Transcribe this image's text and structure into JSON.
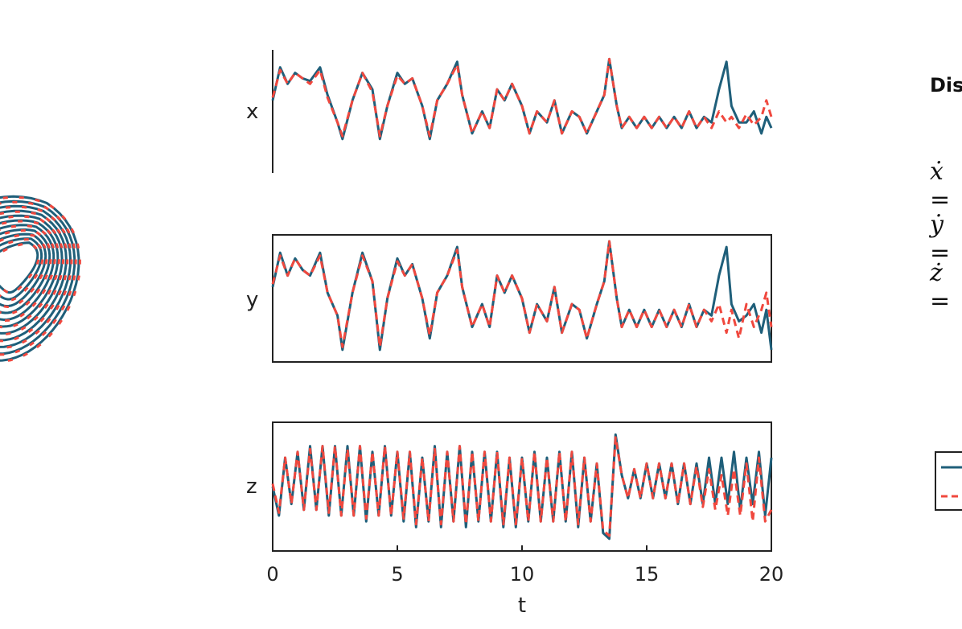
{
  "colors": {
    "solid": "#1f5f7a",
    "dashed": "#f0483e",
    "axis": "#222222"
  },
  "right_panel": {
    "title": "Dis",
    "eq_x": "ẋ =",
    "eq_y": "ẏ =",
    "eq_z": "ż ="
  },
  "chart_data": [
    {
      "type": "line",
      "subtype": "phase-portrait (clipped at left edge)",
      "series": [
        {
          "style": "solid"
        },
        {
          "style": "dashed"
        }
      ]
    },
    {
      "type": "line",
      "ylabel": "x",
      "xlim": [
        0,
        20
      ],
      "series": [
        {
          "style": "solid",
          "x": [
            0,
            0.3,
            0.6,
            0.9,
            1.2,
            1.5,
            1.9,
            2.2,
            2.6,
            2.8,
            3.2,
            3.6,
            4.0,
            4.3,
            4.6,
            5.0,
            5.3,
            5.6,
            6.0,
            6.3,
            6.6,
            7.0,
            7.4,
            7.6,
            8.0,
            8.4,
            8.7,
            9.0,
            9.3,
            9.6,
            10.0,
            10.3,
            10.6,
            11.0,
            11.3,
            11.6,
            12.0,
            12.3,
            12.6,
            13.0,
            13.3,
            13.5,
            13.8,
            14.0,
            14.3,
            14.6,
            14.9,
            15.2,
            15.5,
            15.8,
            16.1,
            16.4,
            16.7,
            17.0,
            17.3,
            17.6,
            17.9,
            18.2,
            18.4,
            18.7,
            19.0,
            19.3,
            19.6,
            19.8,
            20.0
          ],
          "values": [
            0.2,
            0.8,
            0.5,
            0.7,
            0.6,
            0.55,
            0.8,
            0.3,
            -0.2,
            -0.5,
            0.2,
            0.7,
            0.4,
            -0.5,
            0.1,
            0.7,
            0.5,
            0.6,
            0.1,
            -0.5,
            0.2,
            0.5,
            0.9,
            0.3,
            -0.4,
            0.0,
            -0.3,
            0.4,
            0.2,
            0.5,
            0.1,
            -0.4,
            0.0,
            -0.2,
            0.2,
            -0.4,
            0.0,
            -0.1,
            -0.4,
            0.0,
            0.3,
            0.95,
            0.1,
            -0.3,
            -0.1,
            -0.3,
            -0.1,
            -0.3,
            -0.1,
            -0.3,
            -0.1,
            -0.3,
            0.0,
            -0.3,
            -0.1,
            -0.2,
            0.4,
            0.9,
            0.1,
            -0.2,
            -0.2,
            0.0,
            -0.4,
            -0.1,
            -0.3
          ]
        },
        {
          "style": "dashed",
          "x": [
            0,
            0.3,
            0.6,
            0.9,
            1.2,
            1.5,
            1.9,
            2.2,
            2.6,
            2.8,
            3.2,
            3.6,
            4.0,
            4.3,
            4.6,
            5.0,
            5.3,
            5.6,
            6.0,
            6.3,
            6.6,
            7.0,
            7.4,
            7.6,
            8.0,
            8.4,
            8.7,
            9.0,
            9.3,
            9.6,
            10.0,
            10.3,
            10.6,
            11.0,
            11.3,
            11.6,
            12.0,
            12.3,
            12.6,
            13.0,
            13.3,
            13.5,
            13.8,
            14.0,
            14.3,
            14.6,
            14.9,
            15.2,
            15.5,
            15.8,
            16.1,
            16.4,
            16.7,
            17.0,
            17.3,
            17.6,
            17.9,
            18.2,
            18.4,
            18.7,
            19.0,
            19.3,
            19.6,
            19.8,
            20.0
          ],
          "values": [
            0.25,
            0.75,
            0.5,
            0.7,
            0.6,
            0.5,
            0.75,
            0.25,
            -0.2,
            -0.45,
            0.2,
            0.7,
            0.35,
            -0.45,
            0.1,
            0.65,
            0.5,
            0.6,
            0.1,
            -0.45,
            0.2,
            0.5,
            0.85,
            0.3,
            -0.4,
            0.0,
            -0.3,
            0.4,
            0.2,
            0.5,
            0.1,
            -0.4,
            0.0,
            -0.2,
            0.2,
            -0.4,
            0.0,
            -0.1,
            -0.4,
            0.0,
            0.3,
            0.95,
            0.1,
            -0.3,
            -0.1,
            -0.3,
            -0.1,
            -0.3,
            -0.1,
            -0.3,
            -0.1,
            -0.3,
            0.0,
            -0.3,
            -0.1,
            -0.3,
            0.0,
            -0.2,
            -0.1,
            -0.3,
            -0.05,
            -0.25,
            -0.1,
            0.2,
            -0.1
          ]
        }
      ]
    },
    {
      "type": "line",
      "ylabel": "y",
      "xlim": [
        0,
        20
      ],
      "series": [
        {
          "style": "solid",
          "x": [
            0,
            0.3,
            0.6,
            0.9,
            1.2,
            1.5,
            1.9,
            2.2,
            2.6,
            2.8,
            3.2,
            3.6,
            4.0,
            4.3,
            4.6,
            5.0,
            5.3,
            5.6,
            6.0,
            6.3,
            6.6,
            7.0,
            7.4,
            7.6,
            8.0,
            8.4,
            8.7,
            9.0,
            9.3,
            9.6,
            10.0,
            10.3,
            10.6,
            11.0,
            11.3,
            11.6,
            12.0,
            12.3,
            12.6,
            13.0,
            13.3,
            13.5,
            13.8,
            14.0,
            14.3,
            14.6,
            14.9,
            15.2,
            15.5,
            15.8,
            16.1,
            16.4,
            16.7,
            17.0,
            17.3,
            17.6,
            17.9,
            18.2,
            18.4,
            18.7,
            19.0,
            19.3,
            19.6,
            19.8,
            20.0
          ],
          "values": [
            0.2,
            0.8,
            0.4,
            0.7,
            0.5,
            0.4,
            0.8,
            0.1,
            -0.3,
            -0.9,
            0.1,
            0.8,
            0.3,
            -0.9,
            0.0,
            0.7,
            0.4,
            0.6,
            0.0,
            -0.7,
            0.1,
            0.4,
            0.9,
            0.2,
            -0.5,
            -0.1,
            -0.5,
            0.4,
            0.1,
            0.4,
            0.0,
            -0.6,
            -0.1,
            -0.4,
            0.2,
            -0.6,
            -0.1,
            -0.2,
            -0.7,
            -0.1,
            0.3,
            1.0,
            0.0,
            -0.5,
            -0.2,
            -0.5,
            -0.2,
            -0.5,
            -0.2,
            -0.5,
            -0.2,
            -0.5,
            -0.1,
            -0.5,
            -0.2,
            -0.3,
            0.4,
            0.9,
            -0.1,
            -0.4,
            -0.3,
            -0.1,
            -0.6,
            -0.2,
            -0.9
          ]
        },
        {
          "style": "dashed",
          "x": [
            0,
            0.3,
            0.6,
            0.9,
            1.2,
            1.5,
            1.9,
            2.2,
            2.6,
            2.8,
            3.2,
            3.6,
            4.0,
            4.3,
            4.6,
            5.0,
            5.3,
            5.6,
            6.0,
            6.3,
            6.6,
            7.0,
            7.4,
            7.6,
            8.0,
            8.4,
            8.7,
            9.0,
            9.3,
            9.6,
            10.0,
            10.3,
            10.6,
            11.0,
            11.3,
            11.6,
            12.0,
            12.3,
            12.6,
            13.0,
            13.3,
            13.5,
            13.8,
            14.0,
            14.3,
            14.6,
            14.9,
            15.2,
            15.5,
            15.8,
            16.1,
            16.4,
            16.7,
            17.0,
            17.3,
            17.6,
            17.9,
            18.2,
            18.4,
            18.7,
            19.0,
            19.3,
            19.6,
            19.8,
            20.0
          ],
          "values": [
            0.25,
            0.75,
            0.4,
            0.7,
            0.5,
            0.4,
            0.75,
            0.1,
            -0.3,
            -0.85,
            0.1,
            0.75,
            0.3,
            -0.85,
            0.0,
            0.65,
            0.4,
            0.6,
            0.0,
            -0.65,
            0.1,
            0.4,
            0.85,
            0.2,
            -0.5,
            -0.1,
            -0.5,
            0.4,
            0.1,
            0.4,
            0.0,
            -0.6,
            -0.1,
            -0.4,
            0.2,
            -0.6,
            -0.1,
            -0.2,
            -0.7,
            -0.1,
            0.3,
            1.0,
            0.0,
            -0.5,
            -0.2,
            -0.5,
            -0.2,
            -0.5,
            -0.2,
            -0.5,
            -0.2,
            -0.5,
            -0.1,
            -0.5,
            -0.2,
            -0.4,
            -0.1,
            -0.6,
            -0.2,
            -0.7,
            -0.1,
            -0.5,
            -0.2,
            0.1,
            -0.5
          ]
        }
      ]
    },
    {
      "type": "line",
      "ylabel": "z",
      "xlim": [
        0,
        20
      ],
      "xticks": [
        "0",
        "5",
        "10",
        "15",
        "20"
      ],
      "xlabel": "t",
      "series": [
        {
          "style": "solid",
          "x": [
            0,
            0.25,
            0.5,
            0.75,
            1.0,
            1.25,
            1.5,
            1.75,
            2.0,
            2.25,
            2.5,
            2.75,
            3.0,
            3.25,
            3.5,
            3.75,
            4.0,
            4.25,
            4.5,
            4.75,
            5.0,
            5.25,
            5.5,
            5.75,
            6.0,
            6.25,
            6.5,
            6.75,
            7.0,
            7.25,
            7.5,
            7.75,
            8.0,
            8.25,
            8.5,
            8.75,
            9.0,
            9.25,
            9.5,
            9.75,
            10.0,
            10.25,
            10.5,
            10.75,
            11.0,
            11.25,
            11.5,
            11.75,
            12.0,
            12.25,
            12.5,
            12.75,
            13.0,
            13.25,
            13.5,
            13.75,
            14.0,
            14.25,
            14.5,
            14.75,
            15.0,
            15.25,
            15.5,
            15.75,
            16.0,
            16.25,
            16.5,
            16.75,
            17.0,
            17.25,
            17.5,
            17.75,
            18.0,
            18.25,
            18.5,
            18.75,
            19.0,
            19.25,
            19.5,
            19.75,
            20.0
          ],
          "values": [
            0.0,
            -0.5,
            0.5,
            -0.3,
            0.6,
            -0.4,
            0.7,
            -0.4,
            0.7,
            -0.5,
            0.7,
            -0.5,
            0.7,
            -0.5,
            0.7,
            -0.6,
            0.6,
            -0.5,
            0.7,
            -0.5,
            0.6,
            -0.6,
            0.6,
            -0.7,
            0.5,
            -0.6,
            0.7,
            -0.7,
            0.6,
            -0.6,
            0.7,
            -0.7,
            0.6,
            -0.6,
            0.6,
            -0.6,
            0.6,
            -0.7,
            0.5,
            -0.7,
            0.5,
            -0.6,
            0.6,
            -0.6,
            0.5,
            -0.6,
            0.6,
            -0.6,
            0.6,
            -0.7,
            0.5,
            -0.6,
            0.4,
            -0.8,
            -0.9,
            0.9,
            0.2,
            -0.2,
            0.3,
            -0.2,
            0.4,
            -0.2,
            0.4,
            -0.2,
            0.4,
            -0.3,
            0.4,
            -0.3,
            0.4,
            -0.3,
            0.5,
            -0.3,
            0.5,
            -0.3,
            0.6,
            -0.4,
            0.5,
            -0.3,
            0.6,
            -0.5,
            0.5
          ]
        },
        {
          "style": "dashed",
          "x": [
            0,
            0.25,
            0.5,
            0.75,
            1.0,
            1.25,
            1.5,
            1.75,
            2.0,
            2.25,
            2.5,
            2.75,
            3.0,
            3.25,
            3.5,
            3.75,
            4.0,
            4.25,
            4.5,
            4.75,
            5.0,
            5.25,
            5.5,
            5.75,
            6.0,
            6.25,
            6.5,
            6.75,
            7.0,
            7.25,
            7.5,
            7.75,
            8.0,
            8.25,
            8.5,
            8.75,
            9.0,
            9.25,
            9.5,
            9.75,
            10.0,
            10.25,
            10.5,
            10.75,
            11.0,
            11.25,
            11.5,
            11.75,
            12.0,
            12.25,
            12.5,
            12.75,
            13.0,
            13.25,
            13.5,
            13.75,
            14.0,
            14.25,
            14.5,
            14.75,
            15.0,
            15.25,
            15.5,
            15.75,
            16.0,
            16.25,
            16.5,
            16.75,
            17.0,
            17.25,
            17.5,
            17.75,
            18.0,
            18.25,
            18.5,
            18.75,
            19.0,
            19.25,
            19.5,
            19.75,
            20.0
          ],
          "values": [
            0.05,
            -0.45,
            0.5,
            -0.3,
            0.6,
            -0.4,
            0.65,
            -0.4,
            0.7,
            -0.45,
            0.7,
            -0.5,
            0.65,
            -0.5,
            0.7,
            -0.55,
            0.6,
            -0.5,
            0.7,
            -0.5,
            0.6,
            -0.55,
            0.6,
            -0.65,
            0.5,
            -0.6,
            0.65,
            -0.65,
            0.6,
            -0.6,
            0.7,
            -0.65,
            0.6,
            -0.6,
            0.6,
            -0.6,
            0.6,
            -0.65,
            0.5,
            -0.65,
            0.5,
            -0.6,
            0.6,
            -0.6,
            0.5,
            -0.6,
            0.6,
            -0.6,
            0.6,
            -0.65,
            0.5,
            -0.6,
            0.4,
            -0.75,
            -0.85,
            0.85,
            0.2,
            -0.2,
            0.3,
            -0.2,
            0.4,
            -0.2,
            0.4,
            -0.2,
            0.4,
            -0.3,
            0.4,
            -0.3,
            0.35,
            -0.35,
            0.3,
            -0.4,
            0.2,
            -0.5,
            0.3,
            -0.5,
            0.4,
            -0.6,
            0.5,
            -0.6,
            -0.4
          ]
        }
      ]
    }
  ]
}
